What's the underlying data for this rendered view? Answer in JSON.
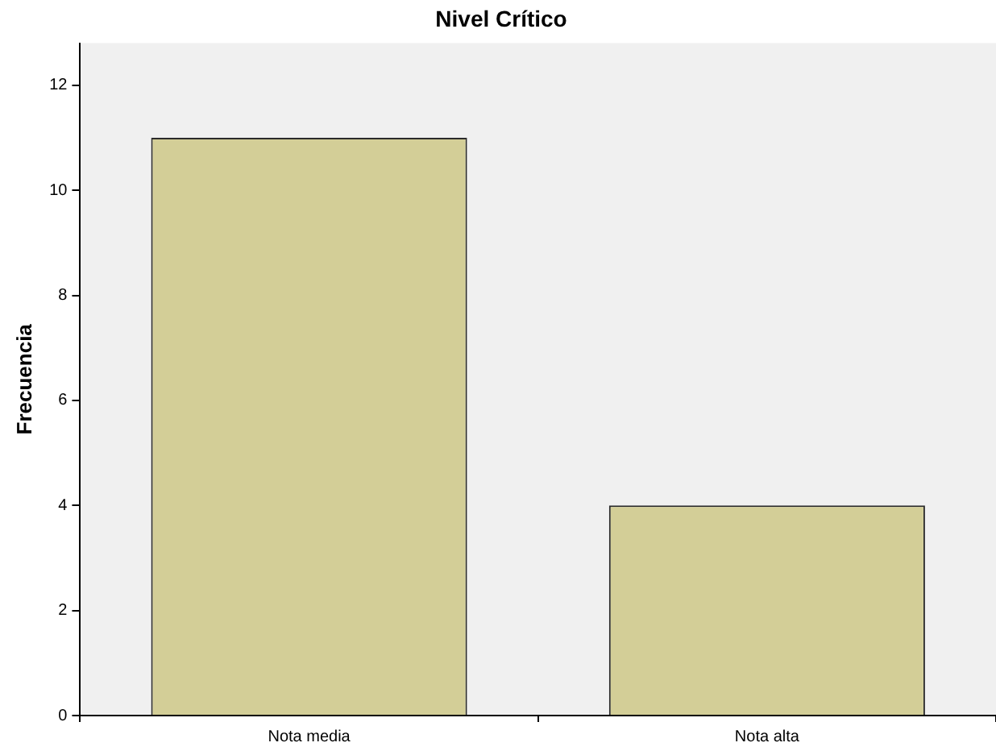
{
  "chart_data": {
    "type": "bar",
    "title": "Nivel Crítico",
    "ylabel": "Frecuencia",
    "categories": [
      "Nota media",
      "Nota alta"
    ],
    "values": [
      11,
      4
    ],
    "color": "#d3ce97",
    "ylim": [
      0,
      12.8
    ],
    "yticks": [
      0,
      2,
      4,
      6,
      8,
      10,
      12
    ],
    "grid": false,
    "legend": false
  }
}
